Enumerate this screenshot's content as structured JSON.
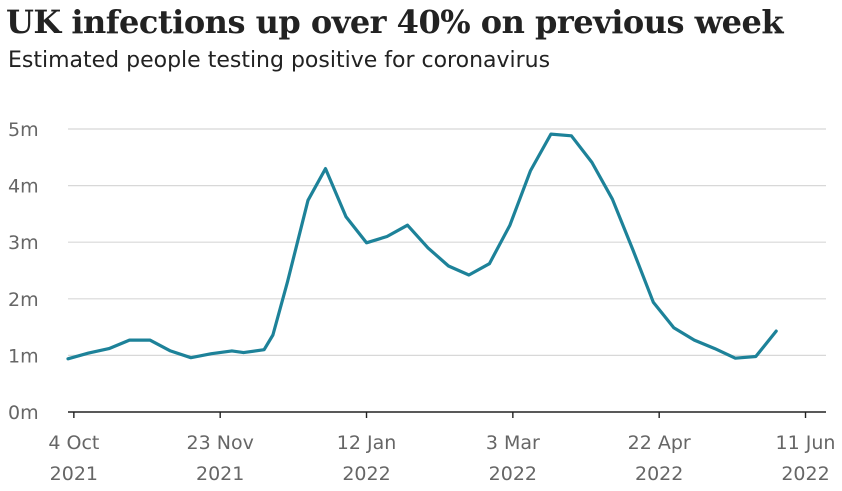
{
  "title": "UK infections up over 40% on previous week",
  "subtitle": "Estimated people testing positive for coronavirus",
  "colors": {
    "line": "#1d8299",
    "grid": "#d8d8d8",
    "axis": "#222222",
    "tick_text": "#666666",
    "title": "#222222"
  },
  "chart_data": {
    "type": "line",
    "title": "UK infections up over 40% on previous week",
    "subtitle": "Estimated people testing positive for coronavirus",
    "xlabel": "",
    "ylabel": "",
    "grid": true,
    "ylim": [
      0,
      5
    ],
    "xlim": [
      "2021-10-02",
      "2022-06-18"
    ],
    "y_ticks": [
      {
        "value": 0,
        "label": "0m"
      },
      {
        "value": 1,
        "label": "1m"
      },
      {
        "value": 2,
        "label": "2m"
      },
      {
        "value": 3,
        "label": "3m"
      },
      {
        "value": 4,
        "label": "4m"
      },
      {
        "value": 5,
        "label": "5m"
      }
    ],
    "x_ticks": [
      {
        "date": "2021-10-04",
        "line1": "4 Oct",
        "line2": "2021"
      },
      {
        "date": "2021-11-23",
        "line1": "23 Nov",
        "line2": "2021"
      },
      {
        "date": "2022-01-12",
        "line1": "12 Jan",
        "line2": "2022"
      },
      {
        "date": "2022-03-03",
        "line1": "3 Mar",
        "line2": "2022"
      },
      {
        "date": "2022-04-22",
        "line1": "22 Apr",
        "line2": "2022"
      },
      {
        "date": "2022-06-11",
        "line1": "11 Jun",
        "line2": "2022"
      }
    ],
    "series": [
      {
        "values": [
          {
            "x": "2021-10-02",
            "y": 0.94
          },
          {
            "x": "2021-10-09",
            "y": 1.04
          },
          {
            "x": "2021-10-16",
            "y": 1.12
          },
          {
            "x": "2021-10-23",
            "y": 1.27
          },
          {
            "x": "2021-10-30",
            "y": 1.27
          },
          {
            "x": "2021-11-06",
            "y": 1.08
          },
          {
            "x": "2021-11-13",
            "y": 0.96
          },
          {
            "x": "2021-11-20",
            "y": 1.03
          },
          {
            "x": "2021-11-27",
            "y": 1.08
          },
          {
            "x": "2021-12-01",
            "y": 1.05
          },
          {
            "x": "2021-12-08",
            "y": 1.1
          },
          {
            "x": "2021-12-11",
            "y": 1.36
          },
          {
            "x": "2021-12-16",
            "y": 2.3
          },
          {
            "x": "2021-12-23",
            "y": 3.74
          },
          {
            "x": "2021-12-29",
            "y": 4.3
          },
          {
            "x": "2022-01-05",
            "y": 3.45
          },
          {
            "x": "2022-01-12",
            "y": 2.99
          },
          {
            "x": "2022-01-19",
            "y": 3.1
          },
          {
            "x": "2022-01-26",
            "y": 3.3
          },
          {
            "x": "2022-02-02",
            "y": 2.9
          },
          {
            "x": "2022-02-09",
            "y": 2.58
          },
          {
            "x": "2022-02-16",
            "y": 2.42
          },
          {
            "x": "2022-02-23",
            "y": 2.62
          },
          {
            "x": "2022-03-02",
            "y": 3.3
          },
          {
            "x": "2022-03-09",
            "y": 4.26
          },
          {
            "x": "2022-03-16",
            "y": 4.91
          },
          {
            "x": "2022-03-23",
            "y": 4.88
          },
          {
            "x": "2022-03-30",
            "y": 4.41
          },
          {
            "x": "2022-04-06",
            "y": 3.76
          },
          {
            "x": "2022-04-13",
            "y": 2.87
          },
          {
            "x": "2022-04-20",
            "y": 1.94
          },
          {
            "x": "2022-04-27",
            "y": 1.49
          },
          {
            "x": "2022-05-04",
            "y": 1.27
          },
          {
            "x": "2022-05-11",
            "y": 1.12
          },
          {
            "x": "2022-05-18",
            "y": 0.95
          },
          {
            "x": "2022-05-25",
            "y": 0.98
          },
          {
            "x": "2022-06-01",
            "y": 1.43
          }
        ]
      }
    ]
  }
}
